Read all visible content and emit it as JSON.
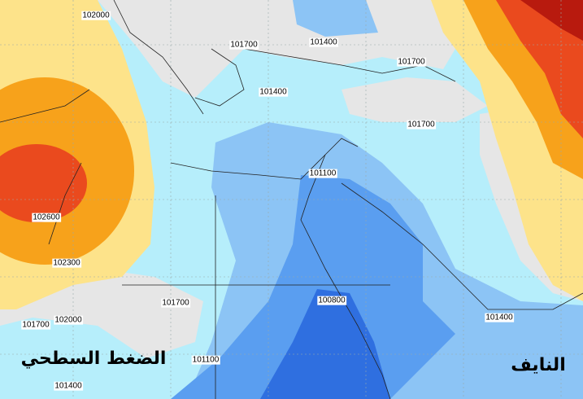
{
  "title": "الضغط السطحي",
  "watermark": "النايف",
  "contour_labels": [
    "102000",
    "101700",
    "101400",
    "101700",
    "101400",
    "101700",
    "101100",
    "102600",
    "102300",
    "101700",
    "100800",
    "101400",
    "102000",
    "101700",
    "101100",
    "101400"
  ]
}
